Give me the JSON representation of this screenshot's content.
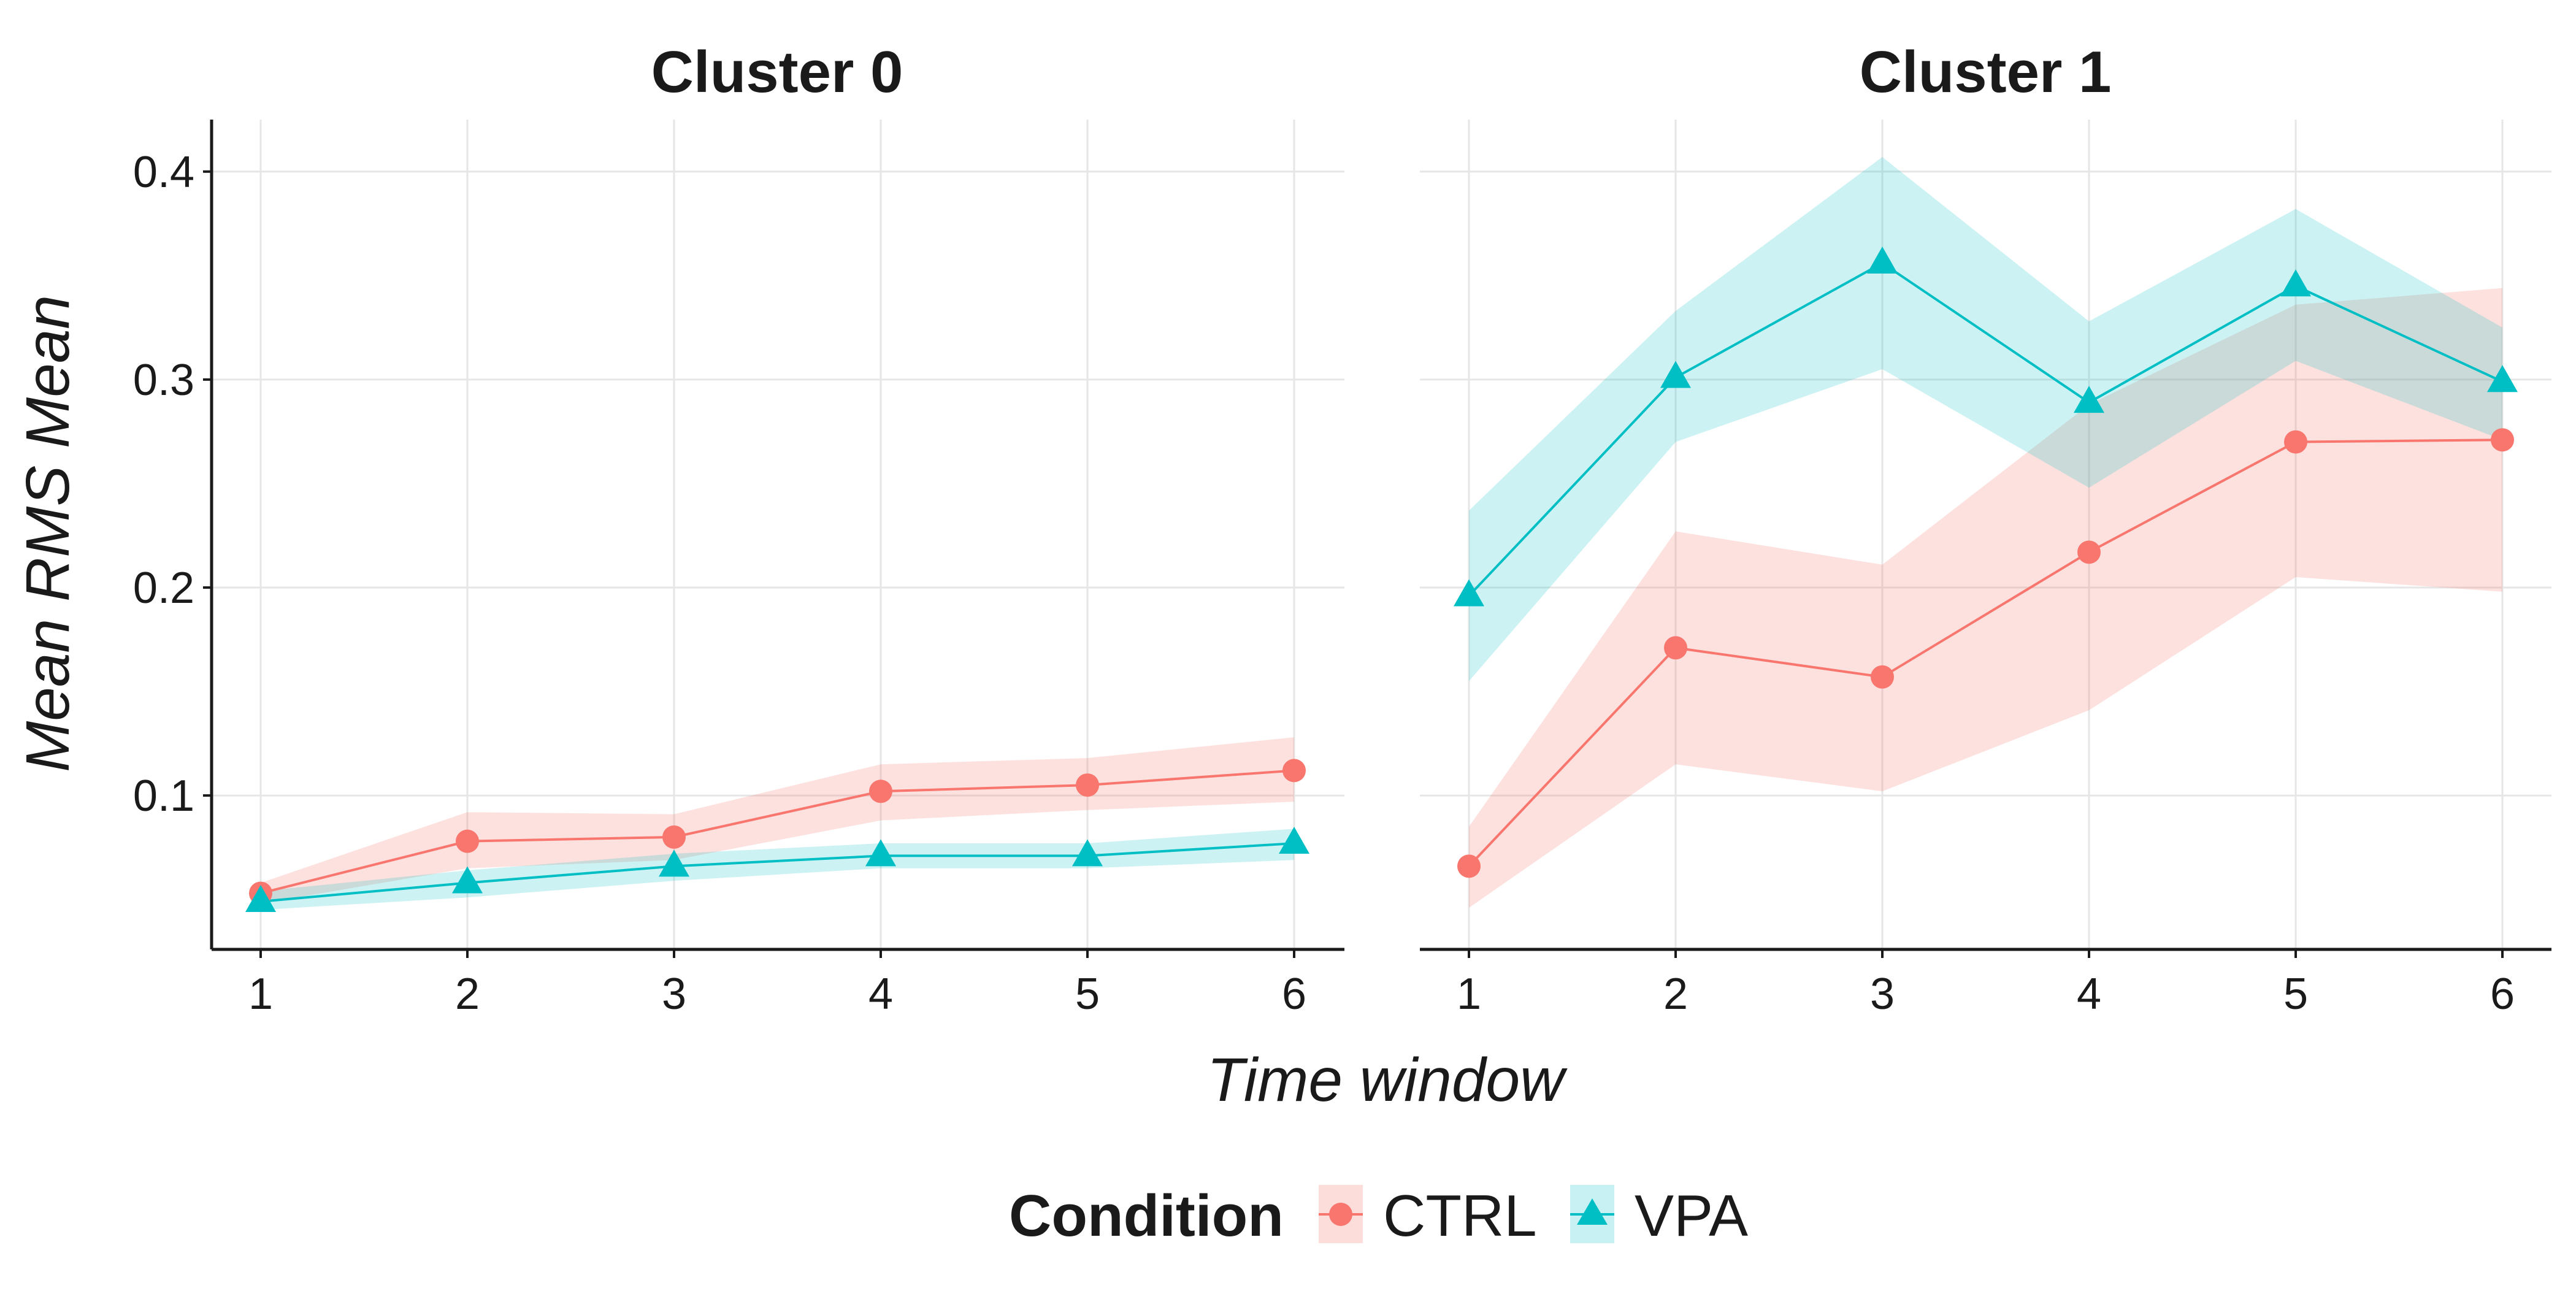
{
  "chart_data": {
    "type": "line",
    "xlabel": "Time window",
    "ylabel": "Mean RMS Mean",
    "x": [
      1,
      2,
      3,
      4,
      5,
      6
    ],
    "x_ticks": [
      "1",
      "2",
      "3",
      "4",
      "5",
      "6"
    ],
    "y_ticks": [
      "0.1",
      "0.2",
      "0.3",
      "0.4"
    ],
    "ylim": [
      0.026,
      0.425
    ],
    "grid": true,
    "legend": {
      "title": "Condition",
      "position": "bottom",
      "entries": [
        {
          "name": "CTRL",
          "color": "#F8766D",
          "shape": "circle"
        },
        {
          "name": "VPA",
          "color": "#00BFC4",
          "shape": "triangle"
        }
      ]
    },
    "panels": [
      {
        "title": "Cluster 0",
        "series": [
          {
            "name": "CTRL",
            "values": [
              0.053,
              0.078,
              0.08,
              0.102,
              0.105,
              0.112
            ],
            "lower": [
              0.048,
              0.065,
              0.069,
              0.088,
              0.093,
              0.097
            ],
            "upper": [
              0.058,
              0.092,
              0.091,
              0.115,
              0.118,
              0.128
            ]
          },
          {
            "name": "VPA",
            "values": [
              0.049,
              0.058,
              0.066,
              0.071,
              0.071,
              0.077
            ],
            "lower": [
              0.045,
              0.051,
              0.059,
              0.065,
              0.065,
              0.069
            ],
            "upper": [
              0.054,
              0.064,
              0.072,
              0.077,
              0.077,
              0.084
            ]
          }
        ]
      },
      {
        "title": "Cluster 1",
        "series": [
          {
            "name": "CTRL",
            "values": [
              0.066,
              0.171,
              0.157,
              0.217,
              0.27,
              0.271
            ],
            "lower": [
              0.046,
              0.115,
              0.102,
              0.141,
              0.205,
              0.198
            ],
            "upper": [
              0.085,
              0.227,
              0.211,
              0.288,
              0.336,
              0.344
            ]
          },
          {
            "name": "VPA",
            "values": [
              0.196,
              0.301,
              0.356,
              0.289,
              0.345,
              0.299
            ],
            "lower": [
              0.155,
              0.27,
              0.305,
              0.248,
              0.309,
              0.271
            ],
            "upper": [
              0.237,
              0.333,
              0.407,
              0.328,
              0.382,
              0.325
            ]
          }
        ]
      }
    ]
  }
}
